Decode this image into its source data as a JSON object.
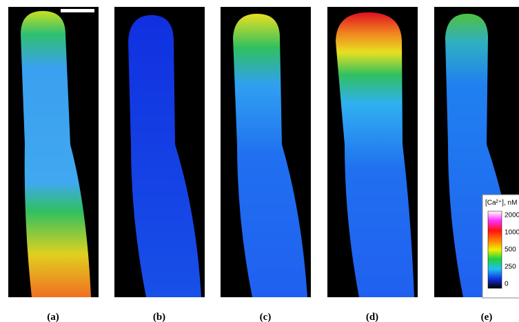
{
  "panels": [
    {
      "label": "(a)"
    },
    {
      "label": "(b)"
    },
    {
      "label": "(c)"
    },
    {
      "label": "(d)"
    },
    {
      "label": "(e)"
    }
  ],
  "colorbar": {
    "title": "[Ca²⁺], nM",
    "ticks": [
      "2000",
      "1000",
      "500",
      "250",
      "0"
    ]
  }
}
